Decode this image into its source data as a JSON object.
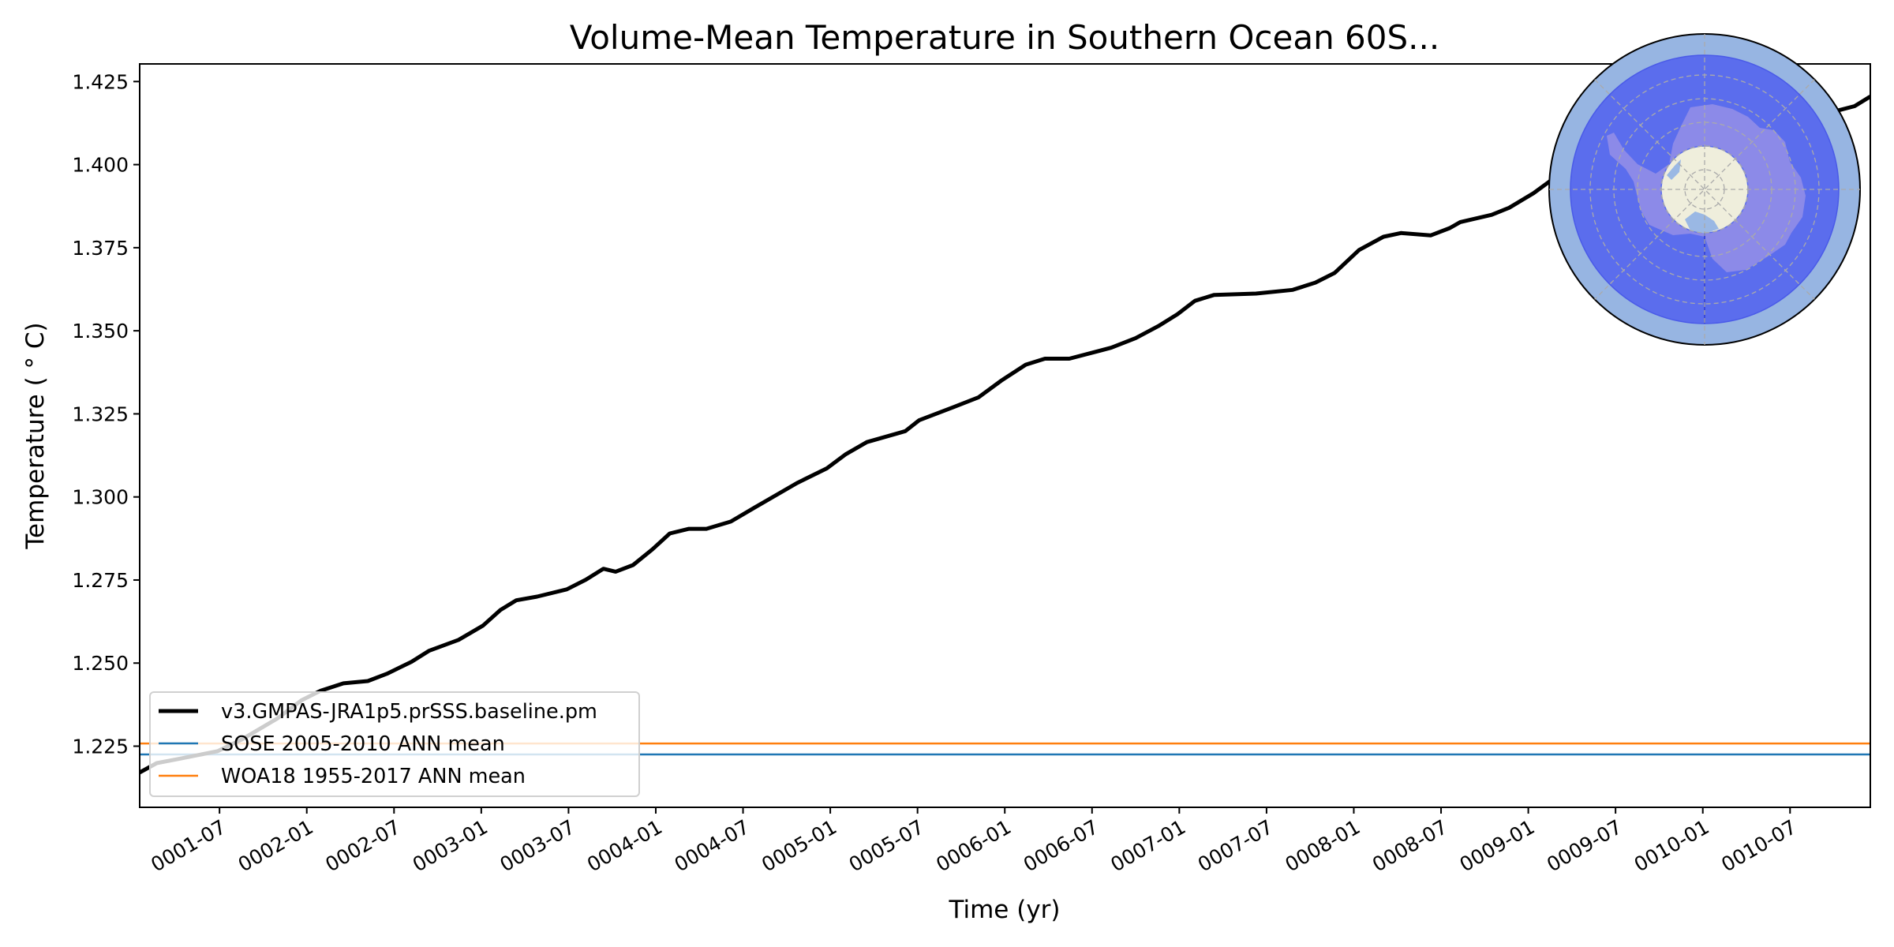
{
  "chart_data": {
    "type": "line",
    "title": "Volume-Mean Temperature in Southern Ocean 60S...",
    "xlabel": "Time (yr)",
    "ylabel": "Temperature ($^\\circ$C)",
    "ylabel_display": "Temperature ( ° C)",
    "xlim": [
      1.0425,
      10.96
    ],
    "ylim": [
      1.2066,
      1.4303
    ],
    "grid": false,
    "legend_placement": "lower-left",
    "yticks": [
      1.225,
      1.25,
      1.275,
      1.3,
      1.325,
      1.35,
      1.375,
      1.4,
      1.425
    ],
    "ytick_labels": [
      "1.225",
      "1.250",
      "1.275",
      "1.300",
      "1.325",
      "1.350",
      "1.375",
      "1.400",
      "1.425"
    ],
    "xticks": [
      1.5,
      2.0,
      2.5,
      3.0,
      3.5,
      4.0,
      4.5,
      5.0,
      5.5,
      6.0,
      6.5,
      7.0,
      7.5,
      8.0,
      8.5,
      9.0,
      9.5,
      10.0,
      10.5
    ],
    "xtick_labels": [
      "0001-07",
      "0002-01",
      "0002-07",
      "0003-01",
      "0003-07",
      "0004-01",
      "0004-07",
      "0005-01",
      "0005-07",
      "0006-01",
      "0006-07",
      "0007-01",
      "0007-07",
      "0008-01",
      "0008-07",
      "0009-01",
      "0009-07",
      "0010-01",
      "0010-07"
    ],
    "series": [
      {
        "name": "v3.GMPAS-JRA1p5.prSSS.baseline.pm",
        "color": "#000000",
        "style": "thick-line",
        "x": [
          1.04,
          1.14,
          1.28,
          1.49,
          1.63,
          1.83,
          1.97,
          2.08,
          2.21,
          2.35,
          2.46,
          2.6,
          2.7,
          2.87,
          3.01,
          3.11,
          3.2,
          3.32,
          3.49,
          3.6,
          3.7,
          3.77,
          3.87,
          3.98,
          4.08,
          4.19,
          4.29,
          4.43,
          4.57,
          4.81,
          4.98,
          5.09,
          5.21,
          5.43,
          5.51,
          5.71,
          5.85,
          5.98,
          6.12,
          6.23,
          6.37,
          6.61,
          6.75,
          6.88,
          6.99,
          7.09,
          7.2,
          7.44,
          7.65,
          7.78,
          7.89,
          8.03,
          8.17,
          8.27,
          8.44,
          8.55,
          8.61,
          8.79,
          8.89,
          9.03,
          9.17,
          9.24,
          10.76,
          10.87,
          10.96
        ],
        "values": [
          1.217,
          1.2199,
          1.2213,
          1.2235,
          1.2271,
          1.2333,
          1.2388,
          1.2417,
          1.2439,
          1.2446,
          1.2468,
          1.2504,
          1.2537,
          1.257,
          1.2613,
          1.266,
          1.2689,
          1.27,
          1.2722,
          1.2751,
          1.2784,
          1.2775,
          1.2795,
          1.2842,
          1.289,
          1.2904,
          1.2904,
          1.2926,
          1.2969,
          1.3042,
          1.3086,
          1.3129,
          1.3165,
          1.3198,
          1.3231,
          1.3271,
          1.33,
          1.335,
          1.3398,
          1.3416,
          1.3416,
          1.3449,
          1.3478,
          1.3514,
          1.355,
          1.359,
          1.3608,
          1.3612,
          1.3623,
          1.3645,
          1.3674,
          1.3743,
          1.3783,
          1.3794,
          1.3787,
          1.3809,
          1.3827,
          1.3849,
          1.387,
          1.3914,
          1.3968,
          1.3994,
          1.4161,
          1.4176,
          1.4205
        ]
      },
      {
        "name": "SOSE 2005-2010 ANN mean",
        "color": "#1f77b4",
        "style": "horizontal-line",
        "value": 1.2225
      },
      {
        "name": "WOA18 1955-2017 ANN mean",
        "color": "#ff7f0e",
        "style": "horizontal-line",
        "value": 1.2258
      }
    ],
    "inset_map": {
      "description": "South-polar stereographic inset showing Southern Ocean region south of 60S",
      "colors": {
        "outer_ring": "#97b5e2",
        "region_fill": "#5b6ded",
        "land": "#8c8ae8",
        "pole_cap": "#efeedc",
        "ice_shelf": "#9ab8e4",
        "gridlines": "#aaaaaa"
      }
    }
  }
}
